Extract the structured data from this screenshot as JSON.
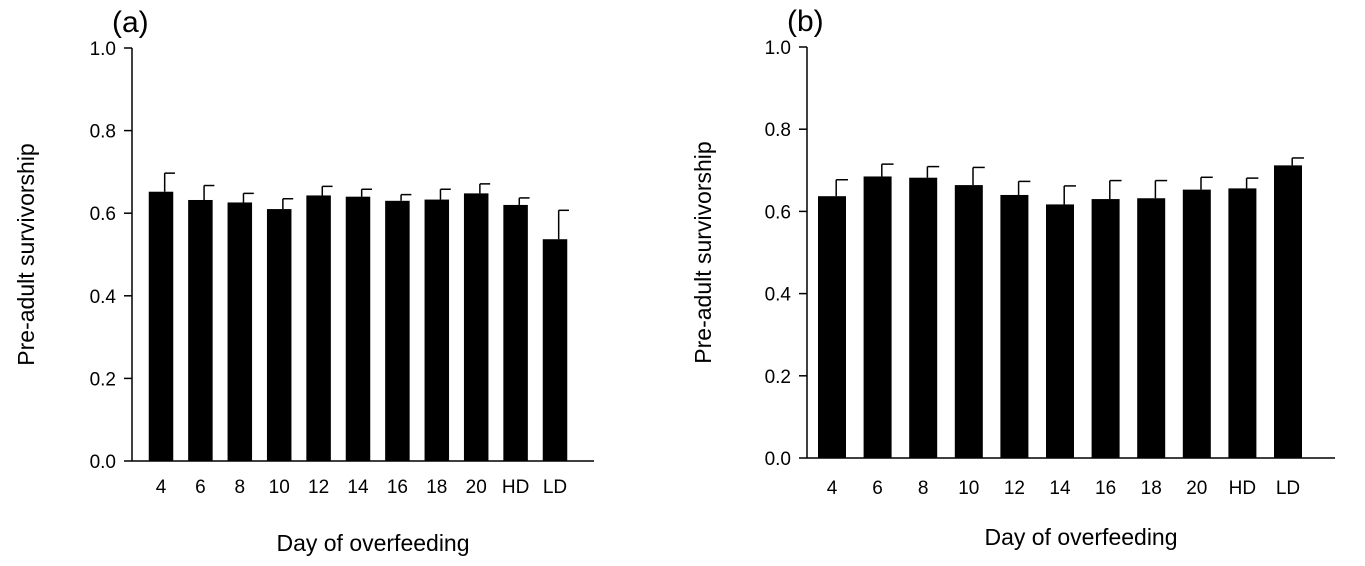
{
  "chart_data": [
    {
      "type": "bar",
      "panel_label": "(a)",
      "xlabel": "Day of overfeeding",
      "ylabel": "Pre-adult survivorship",
      "ylim": [
        0,
        1.0
      ],
      "yticks": [
        "0.0",
        "0.2",
        "0.4",
        "0.6",
        "0.8",
        "1.0"
      ],
      "categories": [
        "4",
        "6",
        "8",
        "10",
        "12",
        "14",
        "16",
        "18",
        "20",
        "HD",
        "LD"
      ],
      "values": [
        0.652,
        0.632,
        0.626,
        0.61,
        0.643,
        0.64,
        0.63,
        0.633,
        0.648,
        0.62,
        0.537
      ],
      "errors": [
        0.045,
        0.035,
        0.022,
        0.025,
        0.022,
        0.018,
        0.015,
        0.025,
        0.023,
        0.017,
        0.07
      ],
      "bar_color": "#000000",
      "grid": false,
      "legend": "none"
    },
    {
      "type": "bar",
      "panel_label": "(b)",
      "xlabel": "Day of overfeeding",
      "ylabel": "Pre-adult survivorship",
      "ylim": [
        0,
        1.0
      ],
      "yticks": [
        "0.0",
        "0.2",
        "0.4",
        "0.6",
        "0.8",
        "1.0"
      ],
      "categories": [
        "4",
        "6",
        "8",
        "10",
        "12",
        "14",
        "16",
        "18",
        "20",
        "HD",
        "LD"
      ],
      "values": [
        0.637,
        0.685,
        0.682,
        0.664,
        0.64,
        0.617,
        0.63,
        0.632,
        0.653,
        0.656,
        0.712
      ],
      "errors": [
        0.04,
        0.03,
        0.027,
        0.043,
        0.033,
        0.045,
        0.045,
        0.043,
        0.03,
        0.025,
        0.018
      ],
      "bar_color": "#000000",
      "grid": false,
      "legend": "none"
    }
  ]
}
